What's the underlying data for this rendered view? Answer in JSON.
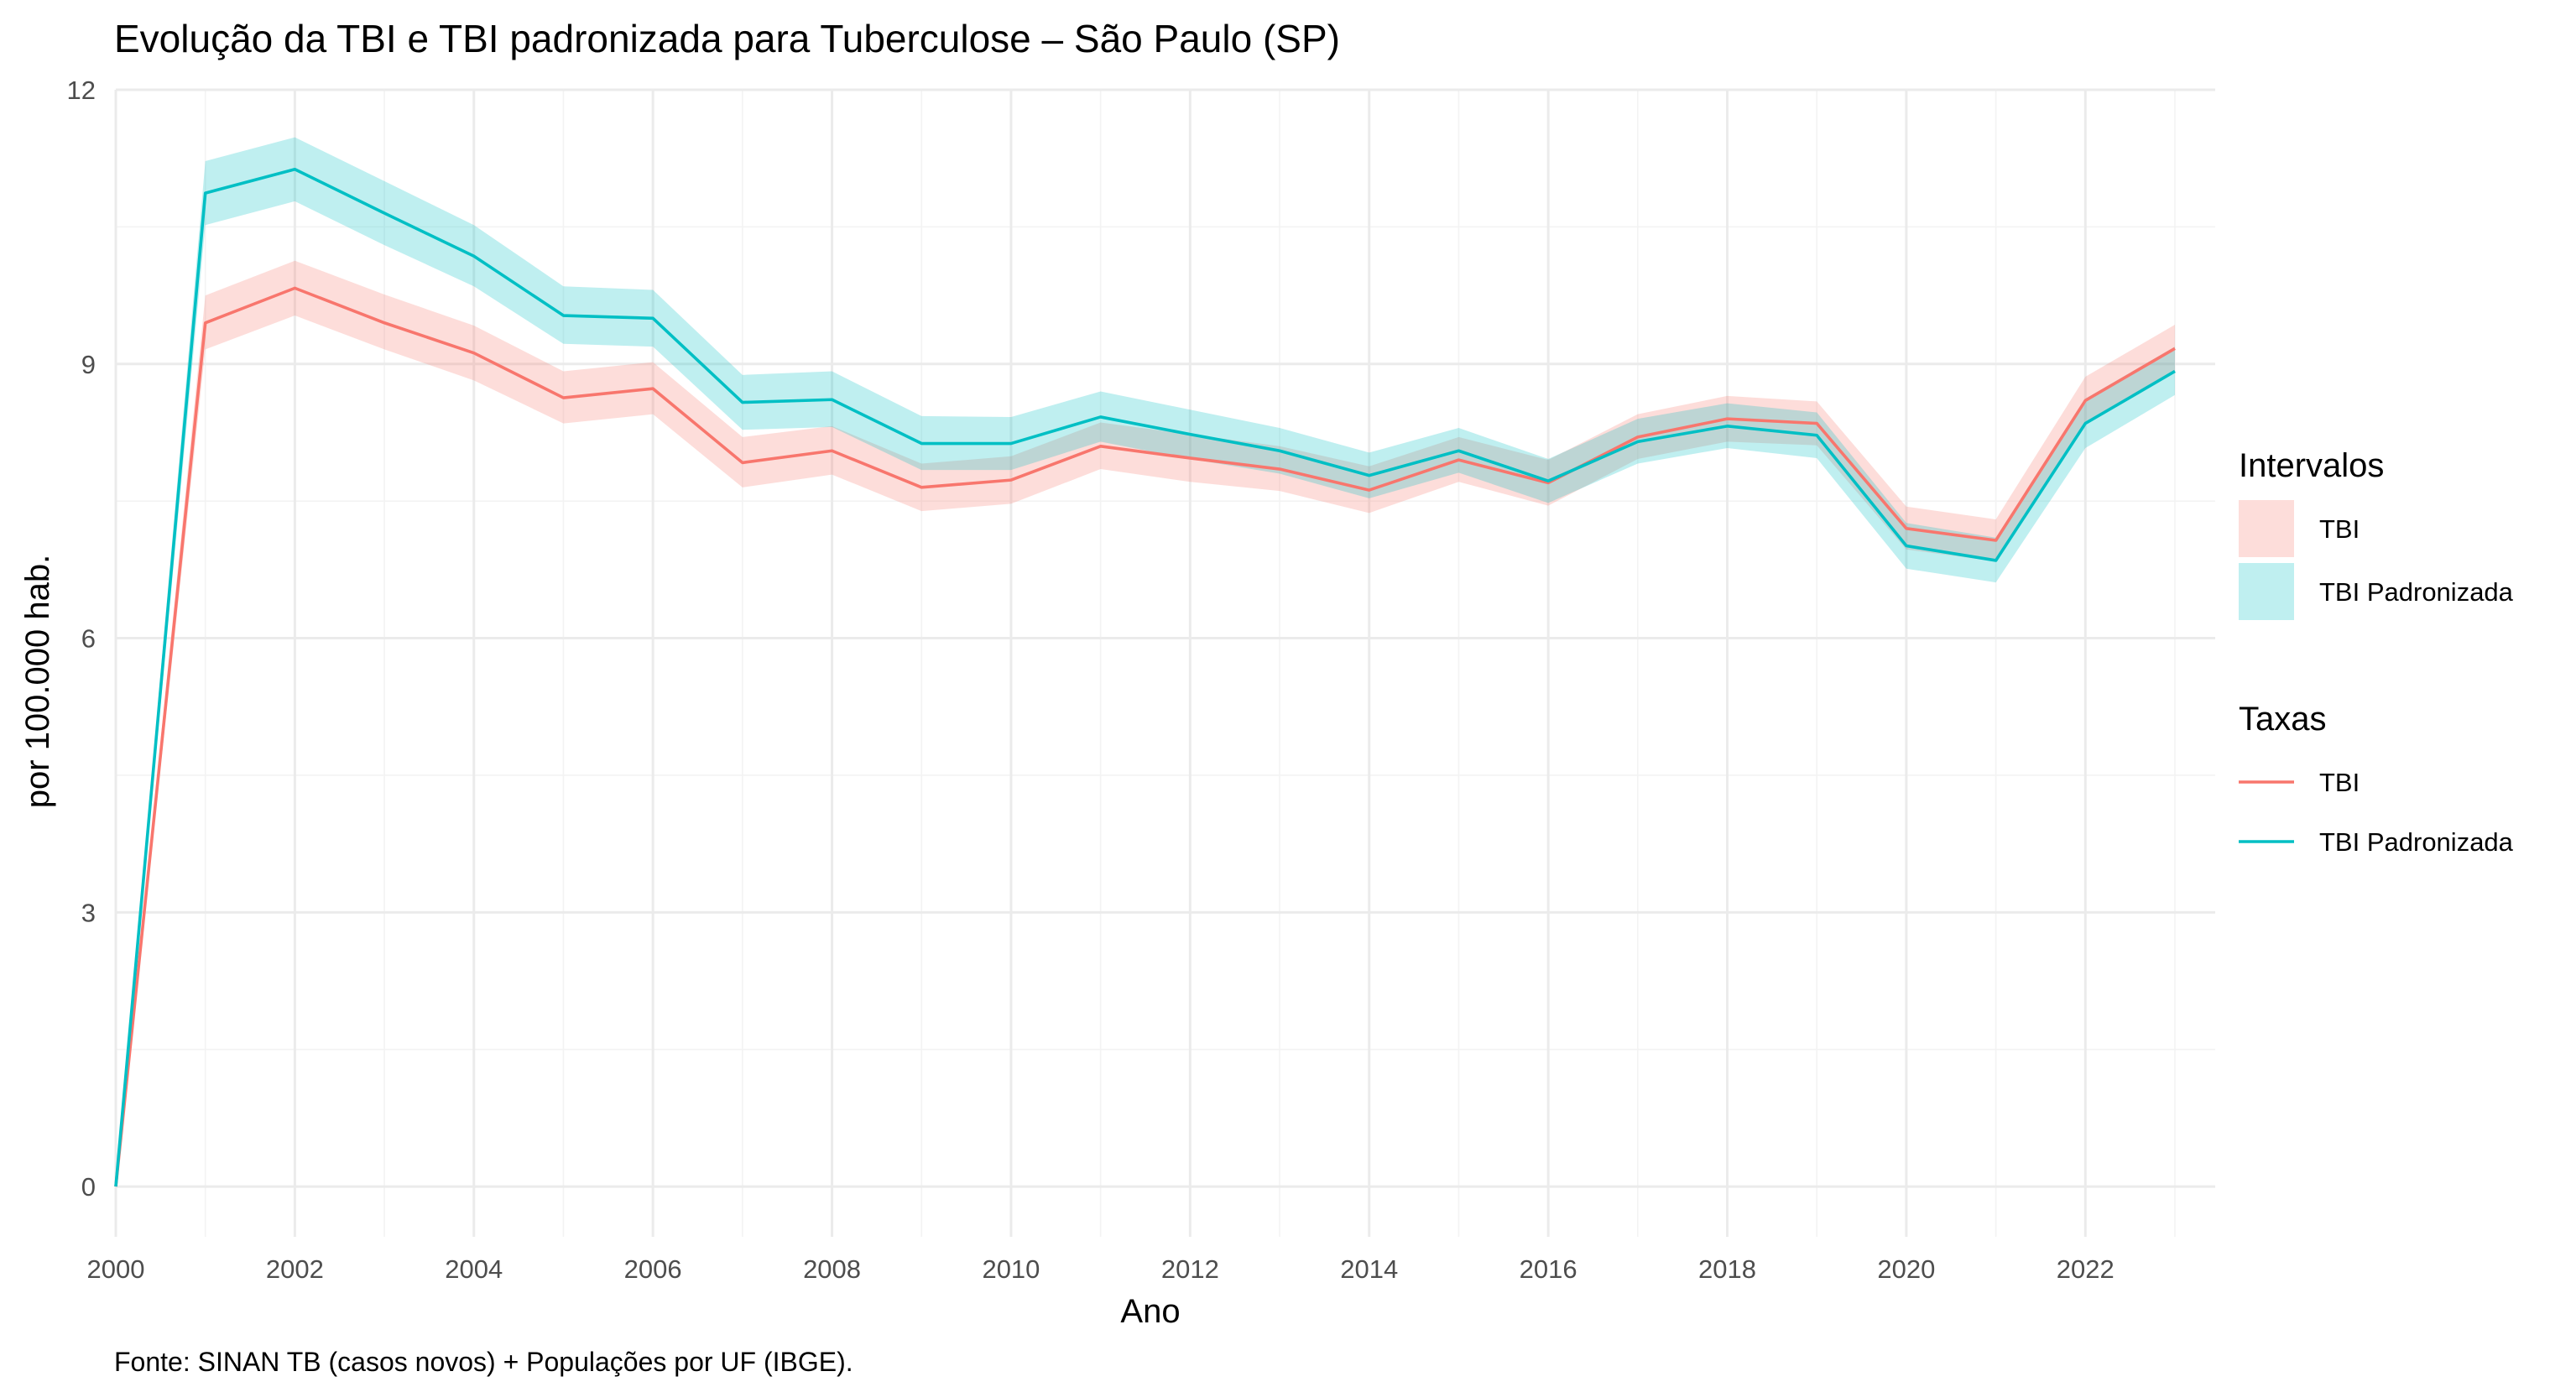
{
  "chart_data": {
    "type": "line",
    "title": "Evolução da TBI e TBI padronizada para Tuberculose – São Paulo (SP)",
    "xlabel": "Ano",
    "ylabel": "por 100.000 hab.",
    "caption": "Fonte: SINAN TB (casos novos) + Populações por UF (IBGE).",
    "xlim": [
      2000,
      2023.45
    ],
    "ylim": [
      -0.55,
      12
    ],
    "x_ticks": [
      2000,
      2002,
      2004,
      2006,
      2008,
      2010,
      2012,
      2014,
      2016,
      2018,
      2020,
      2022
    ],
    "y_ticks": [
      0,
      3,
      6,
      9,
      12
    ],
    "x_tick_labels": [
      "2000",
      "2002",
      "2004",
      "2006",
      "2008",
      "2010",
      "2012",
      "2014",
      "2016",
      "2018",
      "2020",
      "2022"
    ],
    "y_tick_labels": [
      "0",
      "3",
      "6",
      "9",
      "12"
    ],
    "grid": true,
    "legend_placement": "right",
    "x": [
      2000,
      2001,
      2002,
      2003,
      2004,
      2005,
      2006,
      2007,
      2008,
      2009,
      2010,
      2011,
      2012,
      2013,
      2014,
      2015,
      2016,
      2017,
      2018,
      2019,
      2020,
      2021,
      2022,
      2023
    ],
    "series": [
      {
        "name": "TBI",
        "color": "#F8766D",
        "fill": "#F8766D",
        "values": [
          0,
          9.45,
          9.83,
          9.45,
          9.12,
          8.63,
          8.73,
          7.92,
          8.05,
          7.65,
          7.73,
          8.1,
          7.97,
          7.85,
          7.62,
          7.95,
          7.7,
          8.2,
          8.4,
          8.35,
          7.2,
          7.07,
          8.6,
          9.17
        ],
        "lower": [
          0,
          9.16,
          9.53,
          9.16,
          8.82,
          8.35,
          8.45,
          7.65,
          7.79,
          7.39,
          7.47,
          7.85,
          7.71,
          7.61,
          7.37,
          7.71,
          7.45,
          7.96,
          8.15,
          8.11,
          6.97,
          6.84,
          8.35,
          8.92
        ],
        "upper": [
          0,
          9.75,
          10.13,
          9.76,
          9.42,
          8.92,
          9.02,
          8.2,
          8.32,
          7.91,
          7.99,
          8.36,
          8.23,
          8.1,
          7.88,
          8.2,
          7.95,
          8.45,
          8.65,
          8.59,
          7.44,
          7.3,
          8.86,
          9.43
        ]
      },
      {
        "name": "TBI Padronizada",
        "color": "#00BFC4",
        "fill": "#00BFC4",
        "values": [
          0,
          10.87,
          11.13,
          10.65,
          10.18,
          9.53,
          9.5,
          8.58,
          8.61,
          8.13,
          8.13,
          8.42,
          8.23,
          8.05,
          7.78,
          8.05,
          7.72,
          8.15,
          8.32,
          8.22,
          7.01,
          6.85,
          8.35,
          8.92
        ],
        "lower": [
          0,
          10.52,
          10.78,
          10.3,
          9.85,
          9.22,
          9.19,
          8.28,
          8.31,
          7.84,
          7.84,
          8.15,
          7.96,
          7.8,
          7.53,
          7.81,
          7.48,
          7.91,
          8.08,
          7.97,
          6.76,
          6.61,
          8.08,
          8.66
        ],
        "upper": [
          0,
          11.22,
          11.48,
          11.0,
          10.52,
          9.85,
          9.81,
          8.88,
          8.92,
          8.43,
          8.42,
          8.7,
          8.5,
          8.3,
          8.03,
          8.3,
          7.96,
          8.4,
          8.57,
          8.47,
          7.26,
          7.1,
          8.62,
          9.19
        ]
      }
    ],
    "legends": {
      "intervals": {
        "title": "Intervalos",
        "items": [
          "TBI",
          "TBI Padronizada"
        ]
      },
      "rates": {
        "title": "Taxas",
        "items": [
          "TBI",
          "TBI Padronizada"
        ]
      }
    }
  }
}
